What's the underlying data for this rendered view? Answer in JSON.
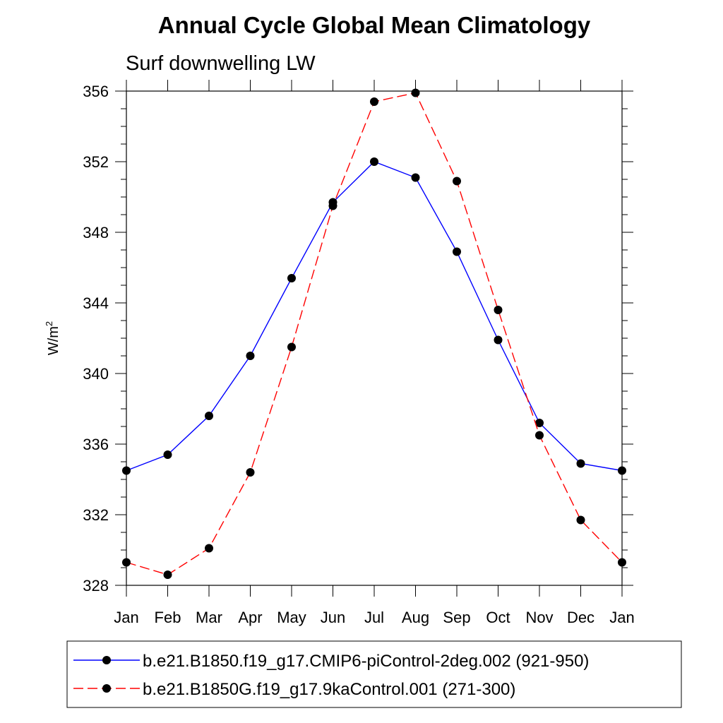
{
  "chart_data": {
    "type": "line",
    "title": "Annual Cycle Global Mean Climatology",
    "subtitle": "Surf downwelling LW",
    "xlabel": "",
    "ylabel": "W/m",
    "ylabel_superscript": "2",
    "categories": [
      "Jan",
      "Feb",
      "Mar",
      "Apr",
      "May",
      "Jun",
      "Jul",
      "Aug",
      "Sep",
      "Oct",
      "Nov",
      "Dec",
      "Jan"
    ],
    "ylim": [
      328,
      356
    ],
    "yticks": [
      328,
      332,
      336,
      340,
      344,
      348,
      352,
      356
    ],
    "grid": false,
    "legend_position": "bottom",
    "series": [
      {
        "name": "b.e21.B1850.f19_g17.CMIP6-piControl-2deg.002 (921-950)",
        "color": "#0000ff",
        "line_style": "solid",
        "marker": "filled-circle",
        "values": [
          334.5,
          335.4,
          337.6,
          341.0,
          345.4,
          349.7,
          352.0,
          351.1,
          346.9,
          341.9,
          337.2,
          334.9,
          334.5
        ]
      },
      {
        "name": "b.e21.B1850G.f19_g17.9kaControl.001 (271-300)",
        "color": "#ff0000",
        "line_style": "dashed",
        "marker": "filled-circle",
        "values": [
          329.3,
          328.6,
          330.1,
          334.4,
          341.5,
          349.5,
          355.4,
          355.9,
          350.9,
          343.6,
          336.5,
          331.7,
          329.3
        ]
      }
    ]
  }
}
